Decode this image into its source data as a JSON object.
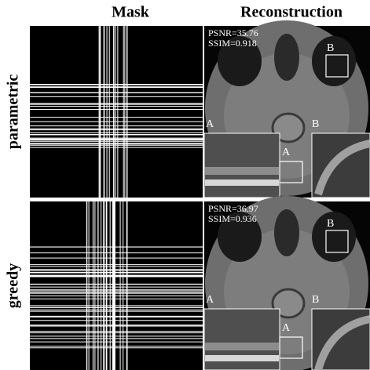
{
  "columns": [
    "Mask",
    "Reconstruction"
  ],
  "rows": [
    {
      "label": "parametric",
      "psnr": "PSNR=35.76",
      "ssim": "SSIM=0.918",
      "tags": {
        "box_b": "B",
        "inset_a": "A",
        "inset_b": "B",
        "box_a": "A"
      }
    },
    {
      "label": "greedy",
      "psnr": "PSNR=36.97",
      "ssim": "SSIM=0.936",
      "tags": {
        "box_b": "B",
        "inset_a": "A",
        "inset_b": "B",
        "box_a": "A"
      }
    }
  ]
}
